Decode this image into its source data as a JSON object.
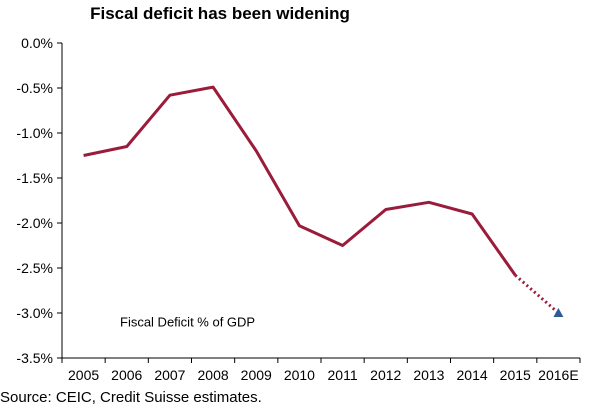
{
  "chart_data": {
    "type": "line",
    "title": "Fiscal deficit has been widening",
    "xlabel": "",
    "ylabel": "",
    "categories": [
      "2005",
      "2006",
      "2007",
      "2008",
      "2009",
      "2010",
      "2011",
      "2012",
      "2013",
      "2014",
      "2015",
      "2016E"
    ],
    "series": [
      {
        "name": "Fiscal Deficit % of GDP",
        "values": [
          -1.25,
          -1.15,
          -0.58,
          -0.49,
          -1.2,
          -2.03,
          -2.25,
          -1.85,
          -1.77,
          -1.9,
          -2.58,
          null
        ],
        "color": "#9b1b3b"
      }
    ],
    "projection": {
      "from_category": "2015",
      "to_category": "2016E",
      "from_value": -2.58,
      "to_value": -3.0,
      "line_color": "#9b1b3b",
      "line_style": "dotted",
      "marker": "triangle",
      "marker_color": "#2e5b9a"
    },
    "ylim": [
      -3.5,
      0
    ],
    "ytick_values": [
      0,
      -0.5,
      -1,
      -1.5,
      -2,
      -2.5,
      -3,
      -3.5
    ],
    "ytick_labels": [
      "0.0%",
      "-0.5%",
      "-1.0%",
      "-1.5%",
      "-2.0%",
      "-2.5%",
      "-3.0%",
      "-3.5%"
    ],
    "annotation": "Fiscal Deficit % of GDP",
    "grid": false,
    "legend": "none"
  },
  "source": "Source: CEIC, Credit Suisse estimates."
}
